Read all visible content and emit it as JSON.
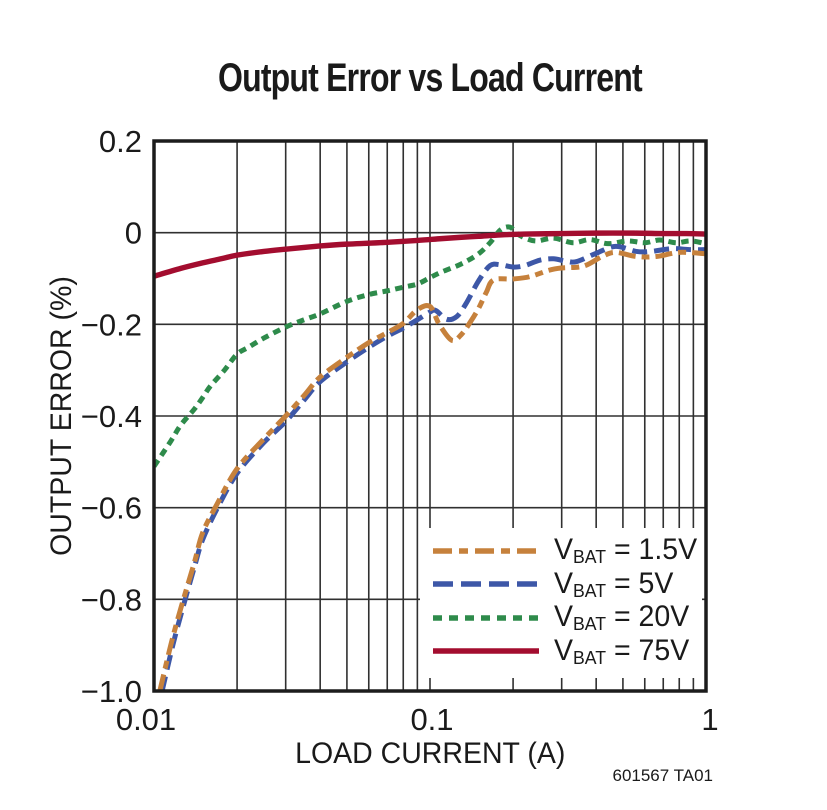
{
  "figure": {
    "title": "Output Error vs Load Current",
    "footnote": "601567 TA01"
  },
  "chart_data": {
    "type": "line",
    "title": "Output Error vs Load Current",
    "xlabel": "LOAD CURRENT (A)",
    "ylabel": "OUTPUT ERROR (%)",
    "x_scale": "log",
    "xlim": [
      0.01,
      1
    ],
    "ylim": [
      -1.0,
      0.2
    ],
    "grid": "on",
    "legend_position": "lower right",
    "x_ticks": [
      {
        "v": 0.01,
        "label": "0.01"
      },
      {
        "v": 0.1,
        "label": "0.1"
      },
      {
        "v": 1,
        "label": "1"
      }
    ],
    "y_ticks": [
      {
        "v": 0.2,
        "label": "0.2"
      },
      {
        "v": 0,
        "label": "0"
      },
      {
        "v": -0.2,
        "label": "−0.2"
      },
      {
        "v": -0.4,
        "label": "−0.4"
      },
      {
        "v": -0.6,
        "label": "−0.6"
      },
      {
        "v": -0.8,
        "label": "−0.8"
      },
      {
        "v": -1.0,
        "label": "−1.0"
      }
    ],
    "colors": {
      "grid": "#303030",
      "axis": "#1c1c1c",
      "text": "#1a1a1a"
    },
    "series": [
      {
        "name": "VBAT = 1.5V",
        "legend": {
          "v": "V",
          "sub": "BAT",
          "value": " = 1.5V"
        },
        "color": "#C6813C",
        "line_style": "dash-dot",
        "points": [
          [
            0.0105,
            -1.0
          ],
          [
            0.0115,
            -0.9
          ],
          [
            0.0125,
            -0.82
          ],
          [
            0.014,
            -0.72
          ],
          [
            0.015,
            -0.655
          ],
          [
            0.017,
            -0.59
          ],
          [
            0.02,
            -0.515
          ],
          [
            0.025,
            -0.45
          ],
          [
            0.03,
            -0.4
          ],
          [
            0.035,
            -0.355
          ],
          [
            0.04,
            -0.315
          ],
          [
            0.05,
            -0.272
          ],
          [
            0.06,
            -0.24
          ],
          [
            0.07,
            -0.218
          ],
          [
            0.08,
            -0.198
          ],
          [
            0.09,
            -0.168
          ],
          [
            0.1,
            -0.161
          ],
          [
            0.108,
            -0.2
          ],
          [
            0.12,
            -0.235
          ],
          [
            0.13,
            -0.222
          ],
          [
            0.14,
            -0.195
          ],
          [
            0.15,
            -0.165
          ],
          [
            0.16,
            -0.13
          ],
          [
            0.17,
            -0.103
          ],
          [
            0.2,
            -0.101
          ],
          [
            0.23,
            -0.096
          ],
          [
            0.27,
            -0.082
          ],
          [
            0.3,
            -0.077
          ],
          [
            0.36,
            -0.073
          ],
          [
            0.42,
            -0.052
          ],
          [
            0.47,
            -0.043
          ],
          [
            0.56,
            -0.052
          ],
          [
            0.66,
            -0.052
          ],
          [
            0.8,
            -0.043
          ],
          [
            1,
            -0.046
          ]
        ]
      },
      {
        "name": "VBAT = 5V",
        "legend": {
          "v": "V",
          "sub": "BAT",
          "value": " = 5V"
        },
        "color": "#3D57A7",
        "line_style": "dashed",
        "points": [
          [
            0.0107,
            -1.0
          ],
          [
            0.0117,
            -0.9
          ],
          [
            0.0127,
            -0.82
          ],
          [
            0.014,
            -0.73
          ],
          [
            0.015,
            -0.67
          ],
          [
            0.017,
            -0.6
          ],
          [
            0.02,
            -0.525
          ],
          [
            0.025,
            -0.458
          ],
          [
            0.03,
            -0.412
          ],
          [
            0.035,
            -0.365
          ],
          [
            0.04,
            -0.325
          ],
          [
            0.05,
            -0.282
          ],
          [
            0.06,
            -0.25
          ],
          [
            0.07,
            -0.226
          ],
          [
            0.08,
            -0.208
          ],
          [
            0.09,
            -0.19
          ],
          [
            0.1,
            -0.173
          ],
          [
            0.105,
            -0.17
          ],
          [
            0.115,
            -0.189
          ],
          [
            0.125,
            -0.183
          ],
          [
            0.135,
            -0.155
          ],
          [
            0.15,
            -0.105
          ],
          [
            0.165,
            -0.072
          ],
          [
            0.18,
            -0.07
          ],
          [
            0.2,
            -0.075
          ],
          [
            0.22,
            -0.072
          ],
          [
            0.25,
            -0.06
          ],
          [
            0.28,
            -0.057
          ],
          [
            0.31,
            -0.062
          ],
          [
            0.34,
            -0.063
          ],
          [
            0.4,
            -0.045
          ],
          [
            0.47,
            -0.03
          ],
          [
            0.56,
            -0.041
          ],
          [
            0.63,
            -0.041
          ],
          [
            0.75,
            -0.035
          ],
          [
            0.88,
            -0.037
          ],
          [
            1,
            -0.037
          ]
        ]
      },
      {
        "name": "VBAT = 20V",
        "legend": {
          "v": "V",
          "sub": "BAT",
          "value": " = 20V"
        },
        "color": "#2E8B4B",
        "line_style": "dotted",
        "points": [
          [
            0.01,
            -0.51
          ],
          [
            0.0115,
            -0.455
          ],
          [
            0.0125,
            -0.42
          ],
          [
            0.014,
            -0.385
          ],
          [
            0.015,
            -0.36
          ],
          [
            0.016,
            -0.335
          ],
          [
            0.018,
            -0.3
          ],
          [
            0.02,
            -0.265
          ],
          [
            0.022,
            -0.25
          ],
          [
            0.025,
            -0.23
          ],
          [
            0.03,
            -0.206
          ],
          [
            0.035,
            -0.19
          ],
          [
            0.04,
            -0.177
          ],
          [
            0.05,
            -0.15
          ],
          [
            0.06,
            -0.135
          ],
          [
            0.07,
            -0.127
          ],
          [
            0.08,
            -0.119
          ],
          [
            0.09,
            -0.112
          ],
          [
            0.1,
            -0.098
          ],
          [
            0.11,
            -0.086
          ],
          [
            0.13,
            -0.068
          ],
          [
            0.15,
            -0.046
          ],
          [
            0.165,
            -0.022
          ],
          [
            0.18,
            0.006
          ],
          [
            0.195,
            0.012
          ],
          [
            0.21,
            -0.005
          ],
          [
            0.24,
            -0.018
          ],
          [
            0.28,
            -0.012
          ],
          [
            0.33,
            -0.022
          ],
          [
            0.38,
            -0.015
          ],
          [
            0.44,
            -0.024
          ],
          [
            0.52,
            -0.018
          ],
          [
            0.6,
            -0.022
          ],
          [
            0.68,
            -0.016
          ],
          [
            0.78,
            -0.022
          ],
          [
            0.88,
            -0.018
          ],
          [
            1,
            -0.024
          ]
        ]
      },
      {
        "name": "VBAT = 75V",
        "legend": {
          "v": "V",
          "sub": "BAT",
          "value": " = 75V"
        },
        "color": "#A30D2F",
        "line_style": "solid",
        "points": [
          [
            0.01,
            -0.095
          ],
          [
            0.0125,
            -0.078
          ],
          [
            0.015,
            -0.066
          ],
          [
            0.0175,
            -0.057
          ],
          [
            0.02,
            -0.049
          ],
          [
            0.025,
            -0.041
          ],
          [
            0.03,
            -0.036
          ],
          [
            0.04,
            -0.029
          ],
          [
            0.05,
            -0.025
          ],
          [
            0.06,
            -0.023
          ],
          [
            0.07,
            -0.021
          ],
          [
            0.09,
            -0.017
          ],
          [
            0.11,
            -0.013
          ],
          [
            0.13,
            -0.01
          ],
          [
            0.15,
            -0.008
          ],
          [
            0.18,
            -0.005
          ],
          [
            0.22,
            -0.003
          ],
          [
            0.3,
            -0.002
          ],
          [
            0.4,
            -0.001
          ],
          [
            0.55,
            -0.001
          ],
          [
            0.7,
            -0.002
          ],
          [
            0.85,
            -0.002
          ],
          [
            1,
            -0.003
          ]
        ]
      }
    ]
  }
}
